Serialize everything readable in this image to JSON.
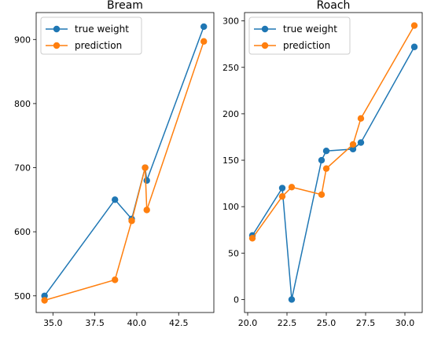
{
  "chart_data": [
    {
      "type": "line",
      "title": "Bream",
      "xlabel": "",
      "ylabel": "",
      "xlim": [
        34.0,
        44.6
      ],
      "ylim": [
        474,
        942
      ],
      "xticks": [
        35.0,
        37.5,
        40.0,
        42.5
      ],
      "xtick_labels": [
        "35.0",
        "37.5",
        "40.0",
        "42.5"
      ],
      "yticks": [
        500,
        600,
        700,
        800,
        900
      ],
      "ytick_labels": [
        "500",
        "600",
        "700",
        "800",
        "900"
      ],
      "grid": false,
      "legend_position": "upper-left",
      "series": [
        {
          "name": "true weight",
          "color": "#1f77b4",
          "marker": "circle",
          "points": [
            [
              34.5,
              500
            ],
            [
              38.7,
              650
            ],
            [
              39.7,
              620
            ],
            [
              40.5,
              700
            ],
            [
              40.6,
              680
            ],
            [
              44.0,
              920
            ]
          ]
        },
        {
          "name": "prediction",
          "color": "#ff7f0e",
          "marker": "circle",
          "points": [
            [
              34.5,
              493
            ],
            [
              38.7,
              525
            ],
            [
              39.7,
              617
            ],
            [
              40.5,
              700
            ],
            [
              40.6,
              634
            ],
            [
              44.0,
              897
            ]
          ]
        }
      ]
    },
    {
      "type": "line",
      "title": "Roach",
      "xlabel": "",
      "ylabel": "",
      "xlim": [
        19.8,
        31.1
      ],
      "ylim": [
        -14,
        309
      ],
      "xticks": [
        20.0,
        22.5,
        25.0,
        27.5,
        30.0
      ],
      "xtick_labels": [
        "20.0",
        "22.5",
        "25.0",
        "27.5",
        "30.0"
      ],
      "yticks": [
        0,
        50,
        100,
        150,
        200,
        250,
        300
      ],
      "ytick_labels": [
        "0",
        "50",
        "100",
        "150",
        "200",
        "250",
        "300"
      ],
      "grid": false,
      "legend_position": "upper-left",
      "series": [
        {
          "name": "true weight",
          "color": "#1f77b4",
          "marker": "circle",
          "points": [
            [
              20.3,
              69
            ],
            [
              22.2,
              120
            ],
            [
              22.8,
              0
            ],
            [
              24.7,
              150
            ],
            [
              25.0,
              160
            ],
            [
              26.7,
              162
            ],
            [
              27.2,
              169
            ],
            [
              30.6,
              272
            ]
          ]
        },
        {
          "name": "prediction",
          "color": "#ff7f0e",
          "marker": "circle",
          "points": [
            [
              20.3,
              66
            ],
            [
              22.2,
              111
            ],
            [
              22.8,
              121
            ],
            [
              24.7,
              113
            ],
            [
              25.0,
              141
            ],
            [
              26.7,
              167
            ],
            [
              27.2,
              195
            ],
            [
              30.6,
              295
            ]
          ]
        }
      ]
    }
  ]
}
